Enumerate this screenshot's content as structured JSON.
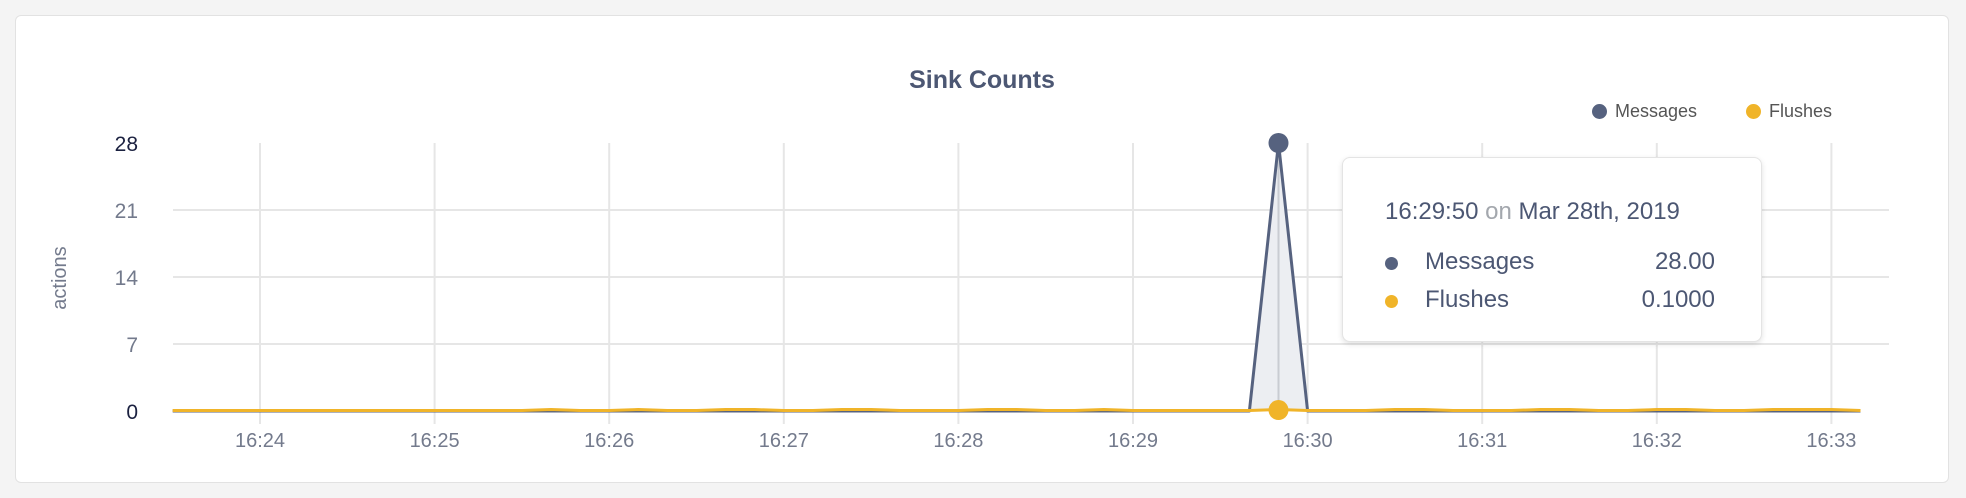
{
  "chart_data": {
    "type": "line",
    "title": "Sink Counts",
    "xlabel": "",
    "ylabel": "actions",
    "ylim": [
      0,
      28
    ],
    "y_ticks": [
      "0",
      "7",
      "14",
      "21",
      "28"
    ],
    "x_ticks": [
      "16:24",
      "16:25",
      "16:26",
      "16:27",
      "16:28",
      "16:29",
      "16:30",
      "16:31",
      "16:32",
      "16:33"
    ],
    "grid": true,
    "legend_placement": "top-right",
    "x": [
      "16:23:30",
      "16:23:40",
      "16:23:50",
      "16:24:00",
      "16:24:10",
      "16:24:20",
      "16:24:30",
      "16:24:40",
      "16:24:50",
      "16:25:00",
      "16:25:10",
      "16:25:20",
      "16:25:30",
      "16:25:40",
      "16:25:50",
      "16:26:00",
      "16:26:10",
      "16:26:20",
      "16:26:30",
      "16:26:40",
      "16:26:50",
      "16:27:00",
      "16:27:10",
      "16:27:20",
      "16:27:30",
      "16:27:40",
      "16:27:50",
      "16:28:00",
      "16:28:10",
      "16:28:20",
      "16:28:30",
      "16:28:40",
      "16:28:50",
      "16:29:00",
      "16:29:10",
      "16:29:20",
      "16:29:30",
      "16:29:40",
      "16:29:50",
      "16:30:00",
      "16:30:10",
      "16:30:20",
      "16:30:30",
      "16:30:40",
      "16:30:50",
      "16:31:00",
      "16:31:10",
      "16:31:20",
      "16:31:30",
      "16:31:40",
      "16:31:50",
      "16:32:00",
      "16:32:10",
      "16:32:20",
      "16:32:30",
      "16:32:40",
      "16:32:50",
      "16:33:00",
      "16:33:10"
    ],
    "series": [
      {
        "name": "Messages",
        "color": "#56627f",
        "values": [
          0,
          0,
          0,
          0,
          0,
          0,
          0,
          0,
          0,
          0,
          0,
          0,
          0,
          0,
          0,
          0,
          0,
          0,
          0,
          0,
          0,
          0,
          0,
          0,
          0,
          0,
          0,
          0,
          0,
          0,
          0,
          0,
          0,
          0,
          0,
          0,
          0,
          0,
          28,
          0,
          0,
          0,
          0,
          0,
          0,
          0,
          0,
          0,
          0,
          0,
          0,
          0,
          0,
          0,
          0,
          0,
          0,
          0,
          0
        ]
      },
      {
        "name": "Flushes",
        "color": "#f0b429",
        "values": [
          0,
          0,
          0,
          0,
          0,
          0,
          0,
          0,
          0,
          0,
          0,
          0,
          0,
          0.1,
          0,
          0,
          0.1,
          0,
          0,
          0.1,
          0.1,
          0,
          0,
          0.1,
          0.1,
          0,
          0,
          0,
          0.1,
          0.1,
          0,
          0,
          0.1,
          0,
          0,
          0,
          0,
          0,
          0.1,
          0,
          0,
          0,
          0.1,
          0.1,
          0,
          0,
          0,
          0.1,
          0.1,
          0,
          0,
          0.1,
          0.1,
          0,
          0,
          0.1,
          0.1,
          0.1,
          0
        ]
      }
    ],
    "tooltip": {
      "time": "16:29:50",
      "on": "on",
      "date": "Mar 28th, 2019",
      "rows": [
        {
          "name": "Messages",
          "value": "28.00",
          "color": "#56627f"
        },
        {
          "name": "Flushes",
          "value": "0.1000",
          "color": "#f0b429"
        }
      ]
    }
  }
}
